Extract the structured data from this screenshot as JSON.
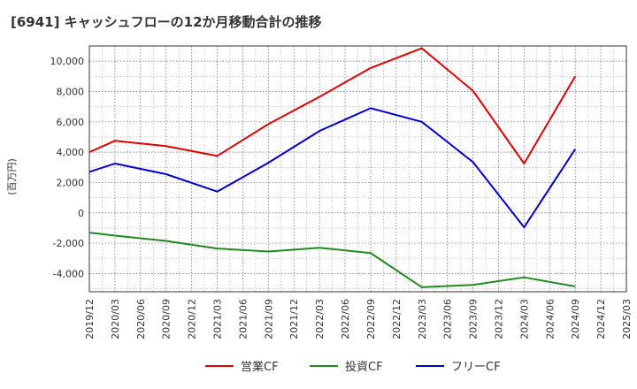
{
  "chart_data": {
    "type": "line",
    "title": "[6941]  キャッシュフローの12か月移動合計の推移",
    "ylabel": "(百万円)",
    "xlabel": "",
    "ylim": [
      -5200,
      11000
    ],
    "yticks": [
      -4000,
      -2000,
      0,
      2000,
      4000,
      6000,
      8000,
      10000
    ],
    "ytick_labels": [
      "-4,000",
      "-2,000",
      "0",
      "2,000",
      "4,000",
      "6,000",
      "8,000",
      "10,000"
    ],
    "categories": [
      "2019/12",
      "2020/03",
      "2020/06",
      "2020/09",
      "2020/12",
      "2021/03",
      "2021/06",
      "2021/09",
      "2021/12",
      "2022/03",
      "2022/06",
      "2022/09",
      "2022/12",
      "2023/03",
      "2023/06",
      "2023/09",
      "2023/12",
      "2024/03",
      "2024/06",
      "2024/09",
      "2024/12",
      "2025/03"
    ],
    "grid": true,
    "legend_position": "bottom",
    "series": [
      {
        "name": "営業CF",
        "color": "#dd0000",
        "points": [
          [
            "2019/12",
            4000
          ],
          [
            "2020/03",
            4750
          ],
          [
            "2020/09",
            4400
          ],
          [
            "2021/03",
            3750
          ],
          [
            "2021/09",
            5850
          ],
          [
            "2022/03",
            7650
          ],
          [
            "2022/09",
            9550
          ],
          [
            "2023/03",
            10850
          ],
          [
            "2023/09",
            8050
          ],
          [
            "2024/03",
            3250
          ],
          [
            "2024/09",
            9000
          ]
        ]
      },
      {
        "name": "投資CF",
        "color": "#228822",
        "points": [
          [
            "2019/12",
            -1300
          ],
          [
            "2020/03",
            -1500
          ],
          [
            "2020/09",
            -1850
          ],
          [
            "2021/03",
            -2350
          ],
          [
            "2021/09",
            -2550
          ],
          [
            "2022/03",
            -2300
          ],
          [
            "2022/09",
            -2650
          ],
          [
            "2023/03",
            -4900
          ],
          [
            "2023/09",
            -4750
          ],
          [
            "2024/03",
            -4250
          ],
          [
            "2024/09",
            -4850
          ]
        ]
      },
      {
        "name": "フリーCF",
        "color": "#0000cc",
        "points": [
          [
            "2019/12",
            2700
          ],
          [
            "2020/03",
            3250
          ],
          [
            "2020/09",
            2550
          ],
          [
            "2021/03",
            1400
          ],
          [
            "2021/09",
            3300
          ],
          [
            "2022/03",
            5400
          ],
          [
            "2022/09",
            6900
          ],
          [
            "2023/03",
            6000
          ],
          [
            "2023/09",
            3350
          ],
          [
            "2024/03",
            -950
          ],
          [
            "2024/09",
            4200
          ]
        ]
      }
    ]
  }
}
